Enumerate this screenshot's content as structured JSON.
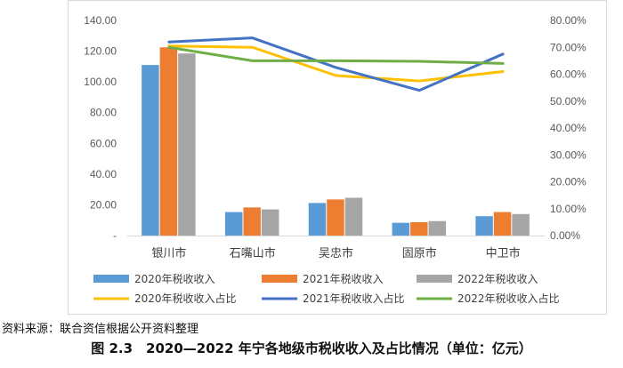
{
  "chart_data": {
    "type": "bar+line",
    "title": "图 2.3　2020—2022 年宁各地级市税收收入及占比情况（单位：亿元）",
    "categories": [
      "银川市",
      "石嘴山市",
      "吴忠市",
      "固原市",
      "中卫市"
    ],
    "bar_series": [
      {
        "name": "2020年税收收入",
        "color": "#5b9bd5",
        "values": [
          111.0,
          15.3,
          21.2,
          8.3,
          12.6
        ]
      },
      {
        "name": "2021年税收收入",
        "color": "#ed7d31",
        "values": [
          122.5,
          18.3,
          23.5,
          8.7,
          15.3
        ]
      },
      {
        "name": "2022年税收收入",
        "color": "#a5a5a5",
        "values": [
          118.5,
          17.0,
          24.6,
          9.4,
          14.0
        ]
      }
    ],
    "line_series": [
      {
        "name": "2020年税收收入占比",
        "color": "#ffc000",
        "values": [
          70.5,
          70.0,
          59.5,
          57.5,
          61.0
        ]
      },
      {
        "name": "2021年税收收入占比",
        "color": "#4472c4",
        "values": [
          72.0,
          73.5,
          62.5,
          54.0,
          67.5
        ]
      },
      {
        "name": "2022年税收收入占比",
        "color": "#70ad47",
        "values": [
          70.0,
          65.0,
          65.0,
          64.8,
          64.0
        ]
      }
    ],
    "left_axis": {
      "min": 0,
      "max": 140,
      "step": 20,
      "tick_labels": [
        "-",
        "20.00",
        "40.00",
        "60.00",
        "80.00",
        "100.00",
        "120.00",
        "140.00"
      ]
    },
    "right_axis": {
      "min": 0,
      "max": 80,
      "step": 10,
      "tick_labels": [
        "0.00%",
        "10.00%",
        "20.00%",
        "30.00%",
        "40.00%",
        "50.00%",
        "60.00%",
        "70.00%",
        "80.00%"
      ]
    },
    "grid": false,
    "legend": "bottom"
  },
  "source_text": "资料来源：联合资信根据公开资料整理",
  "caption_text": "图 2.3　2020—2022 年宁各地级市税收收入及占比情况（单位：亿元）"
}
